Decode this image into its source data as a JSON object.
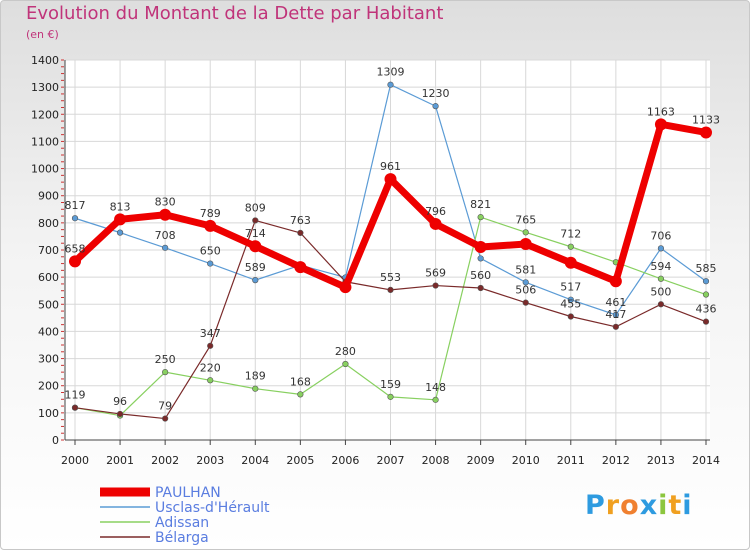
{
  "title": "Evolution du Montant de la Dette par Habitant",
  "subtitle": "(en €)",
  "logo": "Proxiti",
  "chart_data": {
    "type": "line",
    "title": "Evolution du Montant de la Dette par Habitant",
    "subtitle": "(en €)",
    "x": [
      "2000",
      "2001",
      "2002",
      "2003",
      "2004",
      "2005",
      "2006",
      "2007",
      "2008",
      "2009",
      "2010",
      "2011",
      "2012",
      "2013",
      "2014"
    ],
    "yticks": [
      0,
      100,
      200,
      300,
      400,
      500,
      600,
      700,
      800,
      900,
      1000,
      1100,
      1200,
      1300,
      1400
    ],
    "ylim": [
      0,
      1400
    ],
    "grid": true,
    "legend_position": "bottom-left",
    "series": [
      {
        "name": "Usclas-d'Hérault",
        "color": "#5b9bd5",
        "width": 1.2,
        "marker": 2.8,
        "values": [
          817,
          764,
          708,
          650,
          589,
          644,
          599,
          1309,
          1230,
          669,
          581,
          517,
          461,
          706,
          585
        ],
        "labels": [
          "817",
          "",
          "708",
          "650",
          "589",
          "",
          "",
          "1309",
          "1230",
          "",
          "581",
          "517",
          "461",
          "706",
          "585"
        ]
      },
      {
        "name": "Adissan",
        "color": "#88d060",
        "width": 1.2,
        "marker": 2.8,
        "values": [
          119,
          90,
          250,
          220,
          189,
          168,
          280,
          159,
          148,
          821,
          765,
          712,
          655,
          594,
          536
        ],
        "labels": [
          "",
          "",
          "250",
          "220",
          "189",
          "168",
          "280",
          "159",
          "148",
          "821",
          "765",
          "712",
          "",
          "594",
          ""
        ]
      },
      {
        "name": "Bélarga",
        "color": "#7a2a2a",
        "width": 1.2,
        "marker": 2.8,
        "values": [
          119,
          96,
          79,
          347,
          809,
          763,
          583,
          553,
          569,
          560,
          506,
          455,
          417,
          500,
          436
        ],
        "labels": [
          "119",
          "96",
          "79",
          "347",
          "809",
          "763",
          "",
          "553",
          "569",
          "560",
          "506",
          "455",
          "417",
          "500",
          "436"
        ]
      },
      {
        "name": "PAULHAN",
        "color": "#ee0000",
        "width": 7,
        "marker": 6,
        "values": [
          658,
          813,
          830,
          789,
          714,
          637,
          563,
          961,
          796,
          711,
          722,
          653,
          585,
          1163,
          1133
        ],
        "labels": [
          "658",
          "813",
          "830",
          "789",
          "714",
          "",
          "",
          "961",
          "796",
          "",
          "",
          "",
          "",
          "1163",
          "1133"
        ]
      }
    ]
  }
}
